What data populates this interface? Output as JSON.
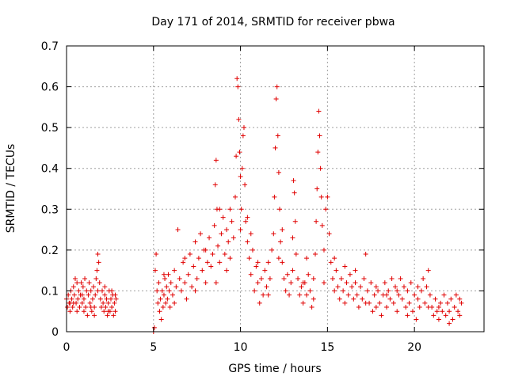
{
  "chart_data": {
    "type": "scatter",
    "title": "Day 171 of 2014, SRMTID for receiver pbwa",
    "xlabel": "GPS time / hours",
    "ylabel": "SRMTID / TECUs",
    "xlim": [
      0,
      24
    ],
    "ylim": [
      0,
      0.7
    ],
    "xticks": [
      0,
      5,
      10,
      15,
      20
    ],
    "yticks": [
      0,
      0.1,
      0.2,
      0.3,
      0.4,
      0.5,
      0.6,
      0.7
    ],
    "xtick_labels": [
      "0",
      "5",
      "10",
      "15",
      "20"
    ],
    "ytick_labels": [
      "0",
      "0.1",
      "0.2",
      "0.3",
      "0.4",
      "0.5",
      "0.6",
      "0.7"
    ],
    "grid": true,
    "marker": "+",
    "color": "#e00000",
    "series": [
      {
        "name": "SRMTID",
        "points": [
          [
            0.0,
            0.08
          ],
          [
            0.05,
            0.06
          ],
          [
            0.1,
            0.09
          ],
          [
            0.15,
            0.07
          ],
          [
            0.2,
            0.05
          ],
          [
            0.25,
            0.1
          ],
          [
            0.3,
            0.08
          ],
          [
            0.35,
            0.06
          ],
          [
            0.4,
            0.11
          ],
          [
            0.45,
            0.09
          ],
          [
            0.5,
            0.13
          ],
          [
            0.55,
            0.07
          ],
          [
            0.6,
            0.12
          ],
          [
            0.65,
            0.08
          ],
          [
            0.7,
            0.1
          ],
          [
            0.75,
            0.06
          ],
          [
            0.8,
            0.09
          ],
          [
            0.85,
            0.12
          ],
          [
            0.9,
            0.07
          ],
          [
            0.95,
            0.11
          ],
          [
            1.0,
            0.08
          ],
          [
            1.05,
            0.13
          ],
          [
            1.1,
            0.06
          ],
          [
            1.15,
            0.1
          ],
          [
            1.2,
            0.04
          ],
          [
            1.25,
            0.09
          ],
          [
            1.3,
            0.12
          ],
          [
            1.35,
            0.07
          ],
          [
            1.4,
            0.1
          ],
          [
            1.45,
            0.05
          ],
          [
            1.5,
            0.08
          ],
          [
            1.55,
            0.11
          ],
          [
            1.6,
            0.06
          ],
          [
            1.65,
            0.09
          ],
          [
            1.7,
            0.13
          ],
          [
            1.75,
            0.15
          ],
          [
            1.8,
            0.19
          ],
          [
            1.85,
            0.17
          ],
          [
            1.9,
            0.12
          ],
          [
            1.95,
            0.08
          ],
          [
            2.0,
            0.06
          ],
          [
            2.05,
            0.1
          ],
          [
            2.1,
            0.07
          ],
          [
            2.15,
            0.05
          ],
          [
            2.2,
            0.09
          ],
          [
            2.25,
            0.06
          ],
          [
            2.3,
            0.08
          ],
          [
            2.35,
            0.04
          ],
          [
            2.4,
            0.07
          ],
          [
            2.45,
            0.1
          ],
          [
            2.5,
            0.05
          ],
          [
            2.55,
            0.08
          ],
          [
            2.6,
            0.06
          ],
          [
            2.65,
            0.09
          ],
          [
            2.7,
            0.04
          ],
          [
            2.75,
            0.07
          ],
          [
            2.8,
            0.05
          ],
          [
            2.85,
            0.08
          ],
          [
            0.2,
            0.07
          ],
          [
            0.6,
            0.05
          ],
          [
            1.0,
            0.05
          ],
          [
            1.4,
            0.06
          ],
          [
            1.8,
            0.1
          ],
          [
            2.2,
            0.11
          ],
          [
            2.6,
            0.1
          ],
          [
            0.4,
            0.07
          ],
          [
            0.9,
            0.09
          ],
          [
            1.6,
            0.04
          ],
          [
            2.4,
            0.05
          ],
          [
            2.8,
            0.09
          ],
          [
            5.0,
            0.0
          ],
          [
            5.05,
            0.01
          ],
          [
            5.1,
            0.15
          ],
          [
            5.15,
            0.19
          ],
          [
            5.2,
            0.1
          ],
          [
            5.25,
            0.07
          ],
          [
            5.3,
            0.12
          ],
          [
            5.35,
            0.05
          ],
          [
            5.4,
            0.08
          ],
          [
            5.45,
            0.03
          ],
          [
            5.5,
            0.1
          ],
          [
            5.55,
            0.06
          ],
          [
            5.6,
            0.09
          ],
          [
            5.65,
            0.13
          ],
          [
            5.7,
            0.07
          ],
          [
            5.75,
            0.11
          ],
          [
            5.8,
            0.08
          ],
          [
            5.85,
            0.14
          ],
          [
            5.9,
            0.1
          ],
          [
            5.95,
            0.06
          ],
          [
            6.0,
            0.12
          ],
          [
            6.1,
            0.09
          ],
          [
            6.2,
            0.15
          ],
          [
            6.3,
            0.11
          ],
          [
            6.4,
            0.25
          ],
          [
            6.5,
            0.13
          ],
          [
            6.6,
            0.1
          ],
          [
            6.7,
            0.17
          ],
          [
            6.8,
            0.12
          ],
          [
            6.9,
            0.08
          ],
          [
            7.0,
            0.14
          ],
          [
            7.1,
            0.19
          ],
          [
            7.2,
            0.11
          ],
          [
            7.3,
            0.16
          ],
          [
            7.4,
            0.22
          ],
          [
            7.5,
            0.13
          ],
          [
            7.6,
            0.18
          ],
          [
            7.7,
            0.24
          ],
          [
            7.8,
            0.15
          ],
          [
            7.9,
            0.2
          ],
          [
            8.0,
            0.12
          ],
          [
            8.1,
            0.17
          ],
          [
            8.2,
            0.23
          ],
          [
            8.3,
            0.16
          ],
          [
            8.4,
            0.19
          ],
          [
            8.5,
            0.26
          ],
          [
            8.55,
            0.36
          ],
          [
            8.6,
            0.42
          ],
          [
            8.65,
            0.3
          ],
          [
            8.7,
            0.21
          ],
          [
            8.8,
            0.17
          ],
          [
            8.9,
            0.24
          ],
          [
            9.0,
            0.28
          ],
          [
            9.1,
            0.19
          ],
          [
            9.2,
            0.25
          ],
          [
            9.3,
            0.22
          ],
          [
            9.4,
            0.18
          ],
          [
            9.5,
            0.27
          ],
          [
            9.6,
            0.23
          ],
          [
            9.7,
            0.33
          ],
          [
            9.75,
            0.43
          ],
          [
            9.8,
            0.62
          ],
          [
            9.85,
            0.6
          ],
          [
            9.9,
            0.52
          ],
          [
            9.95,
            0.44
          ],
          [
            10.0,
            0.38
          ],
          [
            10.05,
            0.3
          ],
          [
            10.1,
            0.4
          ],
          [
            10.15,
            0.48
          ],
          [
            10.2,
            0.5
          ],
          [
            10.25,
            0.36
          ],
          [
            10.3,
            0.27
          ],
          [
            10.4,
            0.22
          ],
          [
            10.5,
            0.18
          ],
          [
            10.6,
            0.14
          ],
          [
            10.7,
            0.2
          ],
          [
            10.8,
            0.1
          ],
          [
            10.9,
            0.16
          ],
          [
            11.0,
            0.12
          ],
          [
            11.1,
            0.07
          ],
          [
            11.2,
            0.13
          ],
          [
            11.3,
            0.09
          ],
          [
            11.4,
            0.15
          ],
          [
            11.5,
            0.11
          ],
          [
            11.6,
            0.17
          ],
          [
            11.7,
            0.13
          ],
          [
            11.8,
            0.2
          ],
          [
            11.9,
            0.24
          ],
          [
            11.95,
            0.33
          ],
          [
            12.0,
            0.45
          ],
          [
            12.05,
            0.57
          ],
          [
            12.1,
            0.6
          ],
          [
            12.15,
            0.48
          ],
          [
            12.2,
            0.39
          ],
          [
            12.25,
            0.3
          ],
          [
            12.3,
            0.22
          ],
          [
            12.4,
            0.17
          ],
          [
            12.5,
            0.13
          ],
          [
            12.6,
            0.1
          ],
          [
            12.7,
            0.14
          ],
          [
            12.8,
            0.09
          ],
          [
            12.9,
            0.12
          ],
          [
            13.0,
            0.23
          ],
          [
            13.05,
            0.37
          ],
          [
            13.1,
            0.34
          ],
          [
            13.15,
            0.27
          ],
          [
            13.2,
            0.19
          ],
          [
            13.3,
            0.13
          ],
          [
            13.4,
            0.09
          ],
          [
            13.5,
            0.11
          ],
          [
            13.6,
            0.07
          ],
          [
            13.7,
            0.12
          ],
          [
            13.8,
            0.09
          ],
          [
            13.9,
            0.14
          ],
          [
            14.0,
            0.1
          ],
          [
            14.1,
            0.06
          ],
          [
            14.2,
            0.13
          ],
          [
            14.3,
            0.19
          ],
          [
            14.35,
            0.27
          ],
          [
            14.4,
            0.35
          ],
          [
            14.45,
            0.44
          ],
          [
            14.5,
            0.54
          ],
          [
            14.55,
            0.48
          ],
          [
            14.6,
            0.4
          ],
          [
            14.65,
            0.33
          ],
          [
            14.7,
            0.26
          ],
          [
            14.8,
            0.2
          ],
          [
            14.9,
            0.3
          ],
          [
            15.0,
            0.33
          ],
          [
            15.1,
            0.24
          ],
          [
            15.2,
            0.17
          ],
          [
            15.3,
            0.13
          ],
          [
            15.4,
            0.1
          ],
          [
            15.5,
            0.15
          ],
          [
            15.6,
            0.11
          ],
          [
            15.7,
            0.08
          ],
          [
            15.8,
            0.13
          ],
          [
            15.9,
            0.1
          ],
          [
            16.0,
            0.16
          ],
          [
            16.1,
            0.12
          ],
          [
            16.2,
            0.09
          ],
          [
            16.3,
            0.14
          ],
          [
            16.4,
            0.11
          ],
          [
            16.5,
            0.08
          ],
          [
            16.6,
            0.12
          ],
          [
            16.7,
            0.09
          ],
          [
            16.8,
            0.06
          ],
          [
            16.9,
            0.11
          ],
          [
            17.0,
            0.08
          ],
          [
            17.1,
            0.13
          ],
          [
            17.2,
            0.19
          ],
          [
            17.3,
            0.1
          ],
          [
            17.4,
            0.07
          ],
          [
            17.5,
            0.12
          ],
          [
            17.6,
            0.05
          ],
          [
            17.7,
            0.09
          ],
          [
            17.8,
            0.06
          ],
          [
            17.9,
            0.1
          ],
          [
            18.0,
            0.07
          ],
          [
            18.1,
            0.04
          ],
          [
            18.2,
            0.09
          ],
          [
            18.3,
            0.12
          ],
          [
            18.4,
            0.06
          ],
          [
            18.5,
            0.1
          ],
          [
            18.6,
            0.08
          ],
          [
            18.7,
            0.13
          ],
          [
            18.8,
            0.07
          ],
          [
            18.9,
            0.11
          ],
          [
            19.0,
            0.05
          ],
          [
            19.1,
            0.09
          ],
          [
            19.2,
            0.13
          ],
          [
            19.3,
            0.08
          ],
          [
            19.4,
            0.11
          ],
          [
            19.5,
            0.06
          ],
          [
            19.6,
            0.1
          ],
          [
            19.7,
            0.07
          ],
          [
            19.8,
            0.12
          ],
          [
            19.9,
            0.05
          ],
          [
            20.0,
            0.09
          ],
          [
            20.1,
            0.03
          ],
          [
            20.2,
            0.08
          ],
          [
            20.3,
            0.06
          ],
          [
            20.4,
            0.1
          ],
          [
            20.5,
            0.13
          ],
          [
            20.6,
            0.07
          ],
          [
            20.7,
            0.11
          ],
          [
            20.8,
            0.15
          ],
          [
            20.9,
            0.09
          ],
          [
            21.0,
            0.06
          ],
          [
            21.1,
            0.04
          ],
          [
            21.2,
            0.08
          ],
          [
            21.3,
            0.05
          ],
          [
            21.4,
            0.03
          ],
          [
            21.5,
            0.07
          ],
          [
            21.6,
            0.05
          ],
          [
            21.7,
            0.09
          ],
          [
            21.8,
            0.04
          ],
          [
            21.9,
            0.07
          ],
          [
            22.0,
            0.05
          ],
          [
            22.1,
            0.08
          ],
          [
            22.2,
            0.03
          ],
          [
            22.3,
            0.06
          ],
          [
            22.4,
            0.09
          ],
          [
            22.5,
            0.05
          ],
          [
            22.6,
            0.04
          ],
          [
            22.7,
            0.07
          ],
          [
            5.6,
            0.14
          ],
          [
            6.2,
            0.07
          ],
          [
            6.8,
            0.18
          ],
          [
            7.4,
            0.1
          ],
          [
            8.0,
            0.2
          ],
          [
            8.6,
            0.12
          ],
          [
            9.2,
            0.15
          ],
          [
            10.4,
            0.28
          ],
          [
            11.0,
            0.17
          ],
          [
            11.6,
            0.09
          ],
          [
            12.4,
            0.25
          ],
          [
            13.0,
            0.15
          ],
          [
            13.6,
            0.12
          ],
          [
            14.2,
            0.08
          ],
          [
            14.8,
            0.12
          ],
          [
            15.4,
            0.18
          ],
          [
            16.0,
            0.07
          ],
          [
            16.6,
            0.15
          ],
          [
            17.2,
            0.07
          ],
          [
            17.8,
            0.11
          ],
          [
            18.4,
            0.09
          ],
          [
            19.0,
            0.1
          ],
          [
            19.6,
            0.04
          ],
          [
            20.2,
            0.11
          ],
          [
            20.8,
            0.06
          ],
          [
            21.4,
            0.06
          ],
          [
            22.0,
            0.02
          ],
          [
            22.6,
            0.08
          ],
          [
            10.0,
            0.25
          ],
          [
            10.6,
            0.24
          ],
          [
            9.4,
            0.3
          ],
          [
            8.8,
            0.3
          ],
          [
            12.2,
            0.18
          ],
          [
            13.8,
            0.18
          ]
        ]
      }
    ]
  }
}
